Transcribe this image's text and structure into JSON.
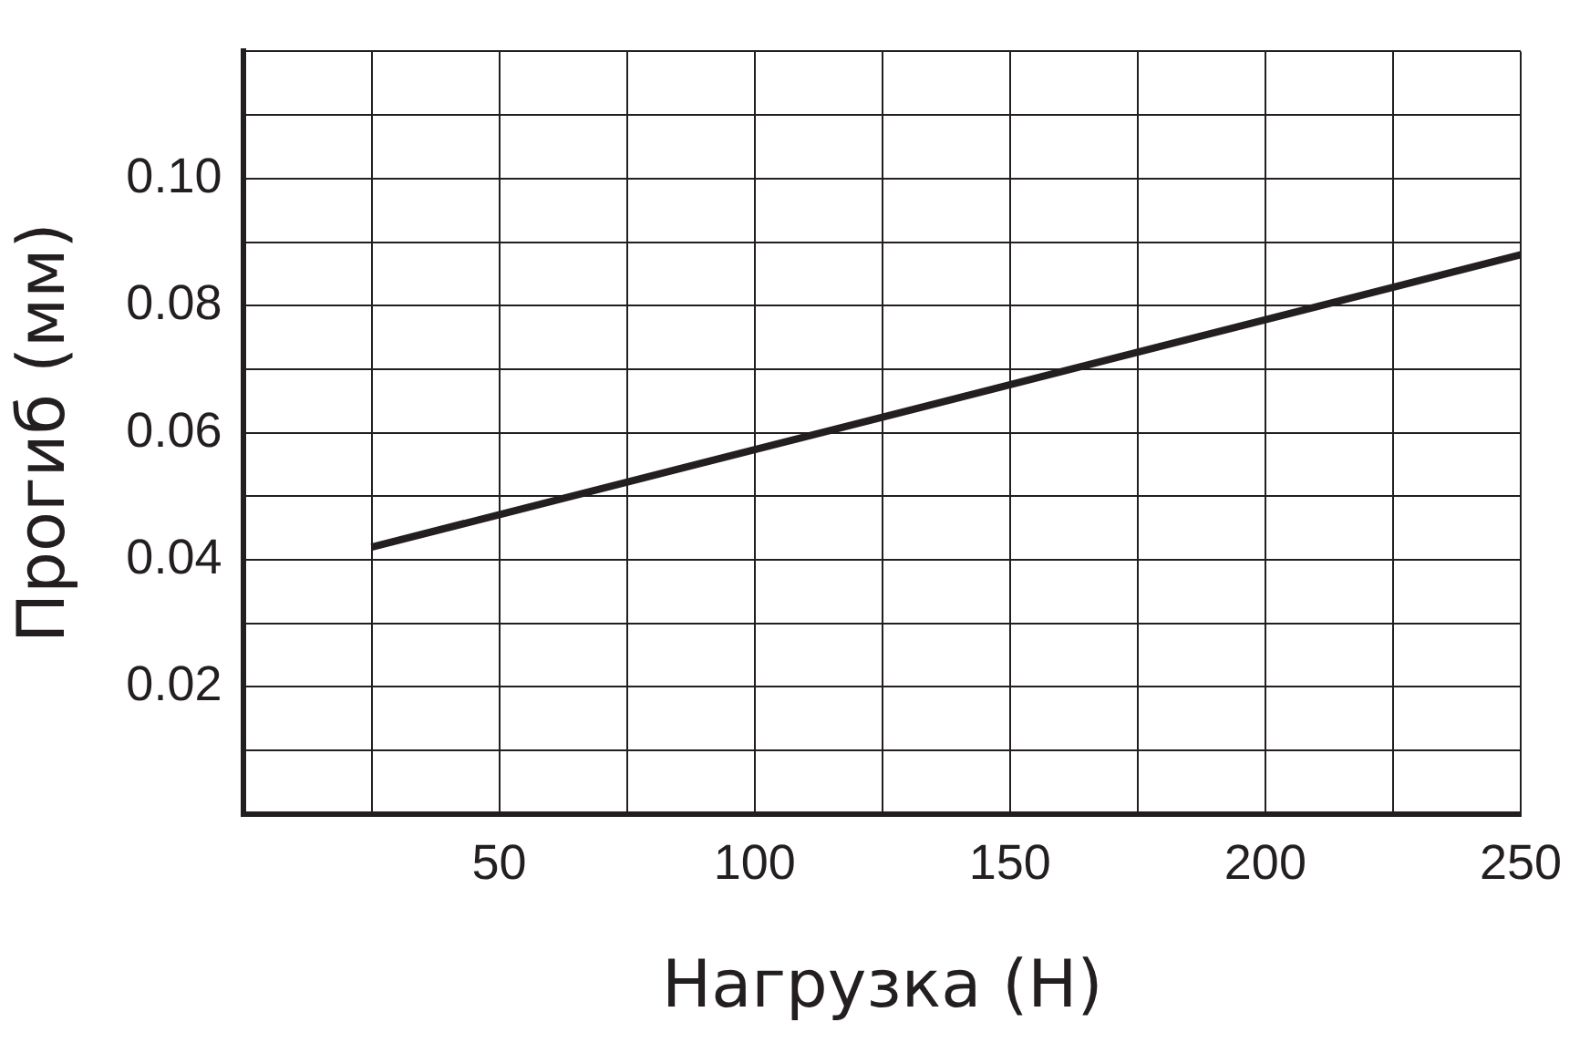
{
  "chart_data": {
    "type": "line",
    "xlabel": "Нагрузка (Н)",
    "ylabel": "Прогиб (мм)",
    "x": [
      25,
      250
    ],
    "series": [
      {
        "color": "#231f20",
        "values": [
          0.042,
          0.088
        ]
      }
    ],
    "xlim": [
      0,
      250
    ],
    "xticks": [
      {
        "value": 0,
        "label": null
      },
      {
        "value": 25,
        "label": null
      },
      50,
      {
        "value": 75,
        "label": null
      },
      100,
      {
        "value": 125,
        "label": null
      },
      150,
      {
        "value": 175,
        "label": null
      },
      200,
      {
        "value": 225,
        "label": null
      },
      250
    ],
    "ylim": [
      0,
      0.12
    ],
    "yticks": [
      {
        "value": 0,
        "label": null
      },
      {
        "value": 0.01,
        "label": null
      },
      {
        "value": 0.02,
        "label": "0.02"
      },
      {
        "value": 0.03,
        "label": null
      },
      {
        "value": 0.04,
        "label": "0.04"
      },
      {
        "value": 0.05,
        "label": null
      },
      {
        "value": 0.06,
        "label": "0.06"
      },
      {
        "value": 0.07,
        "label": null
      },
      {
        "value": 0.08,
        "label": "0.08"
      },
      {
        "value": 0.09,
        "label": null
      },
      {
        "value": 0.1,
        "label": "0.10"
      },
      {
        "value": 0.11,
        "label": null
      },
      {
        "value": 0.12,
        "label": null
      }
    ],
    "grid": true,
    "legend": false,
    "marker": "none",
    "line_style": "solid"
  }
}
